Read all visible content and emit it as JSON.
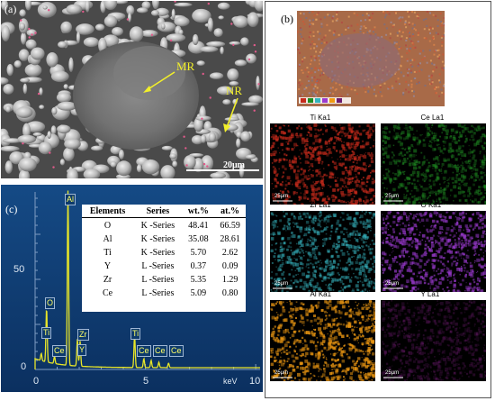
{
  "panel_a": {
    "label": "(a)",
    "annotations": [
      "MR",
      "NR"
    ],
    "scale_bar": "20μm"
  },
  "panel_b": {
    "label": "(b)",
    "maps": [
      {
        "label": "Ti Ka1",
        "scale": "25μm",
        "color": "#c62a1b"
      },
      {
        "label": "Ce La1",
        "scale": "25μm",
        "color": "#1f8d22"
      },
      {
        "label": "Zr La1",
        "scale": "25μm",
        "color": "#35b3be"
      },
      {
        "label": "O Ka1",
        "scale": "25μm",
        "color": "#9b3ad0"
      },
      {
        "label": "Al Ka1",
        "scale": "25μm",
        "color": "#f09a12"
      },
      {
        "label": "Y La1",
        "scale": "25μm",
        "color": "#6c1b6e"
      }
    ]
  },
  "panel_c": {
    "label": "(c)",
    "y_ticks": [
      "50",
      "0"
    ],
    "x_ticks": [
      "0",
      "5",
      "10"
    ],
    "x_unit": "keV",
    "peak_labels": [
      "Al",
      "O",
      "Ti",
      "Ce",
      "Zr",
      "Y",
      "Ti",
      "Ce",
      "Ce",
      "Ce"
    ],
    "table": {
      "headers": [
        "Elements",
        "Series",
        "wt.%",
        "at.%"
      ],
      "rows": [
        [
          "O",
          "K -Series",
          "48.41",
          "66.59"
        ],
        [
          "Al",
          "K -Series",
          "35.08",
          "28.61"
        ],
        [
          "Ti",
          "K -Series",
          "5.70",
          "2.62"
        ],
        [
          "Y",
          "L -Series",
          "0.37",
          "0.09"
        ],
        [
          "Zr",
          "L -Series",
          "5.35",
          "1.29"
        ],
        [
          "Ce",
          "L -Series",
          "5.09",
          "0.80"
        ]
      ]
    },
    "spectrum_color": "#e8e628"
  }
}
